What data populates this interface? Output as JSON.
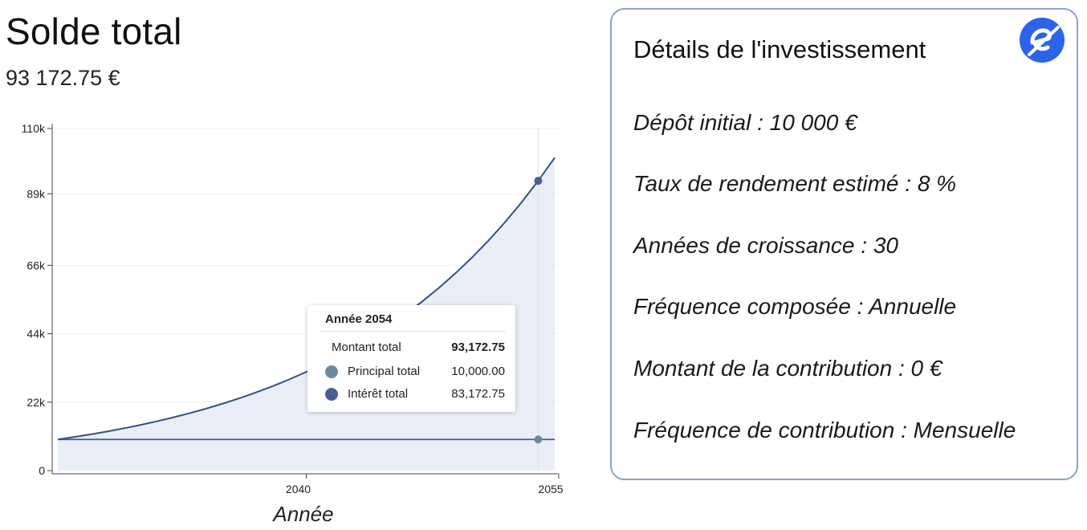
{
  "header": {
    "title": "Solde total",
    "total": "93 172.75 €"
  },
  "details": {
    "title": "Détails de l'investissement",
    "logo_icon": "circle-e-logo",
    "items": [
      "Dépôt initial : 10 000 €",
      "Taux de rendement estimé : 8 %",
      "Années de croissance : 30",
      "Fréquence composée : Annuelle",
      "Montant de la contribution : 0 €",
      "Fréquence de contribution : Mensuelle"
    ]
  },
  "tooltip": {
    "title": "Année 2054",
    "rows": [
      {
        "label": "Montant total",
        "value": "93,172.75"
      },
      {
        "label": "Principal total",
        "value": "10,000.00"
      },
      {
        "label": "Intérêt total",
        "value": "83,172.75"
      }
    ]
  },
  "colors": {
    "total_line": "#34517e",
    "principal_line": "#3d5f86",
    "area_fill": "#e9eef9",
    "principal_dot": "#6b8aa1",
    "interest_dot": "#4a5e96",
    "card_border": "#8e9fd6",
    "logo": "#2d63e8"
  },
  "chart_data": {
    "type": "area",
    "xlabel": "Année",
    "ylabel": "",
    "x_ticks": [
      {
        "value": 2040,
        "label": "2040"
      },
      {
        "value": 2055,
        "label": "2055"
      }
    ],
    "y_ticks": [
      {
        "value": 0,
        "label": "0"
      },
      {
        "value": 22000,
        "label": "22k"
      },
      {
        "value": 44000,
        "label": "44k"
      },
      {
        "value": 66000,
        "label": "66k"
      },
      {
        "value": 89000,
        "label": "89k"
      },
      {
        "value": 110000,
        "label": "110k"
      }
    ],
    "xlim": [
      2025,
      2055
    ],
    "ylim": [
      0,
      110000
    ],
    "grid": "horizontal",
    "highlight_x": 2054,
    "x": [
      2025,
      2026,
      2027,
      2028,
      2029,
      2030,
      2031,
      2032,
      2033,
      2034,
      2035,
      2036,
      2037,
      2038,
      2039,
      2040,
      2041,
      2042,
      2043,
      2044,
      2045,
      2046,
      2047,
      2048,
      2049,
      2050,
      2051,
      2052,
      2053,
      2054,
      2055
    ],
    "series": [
      {
        "name": "Montant total",
        "values": [
          10000,
          10800,
          11664,
          12597,
          13605,
          14693,
          15869,
          17138,
          18509,
          19990,
          21589,
          23316,
          25182,
          27196,
          29372,
          31722,
          34259,
          37000,
          39960,
          43157,
          46610,
          50338,
          54365,
          58715,
          63412,
          68485,
          73964,
          79881,
          86271,
          93173,
          100627
        ]
      },
      {
        "name": "Principal total",
        "values": [
          10000,
          10000,
          10000,
          10000,
          10000,
          10000,
          10000,
          10000,
          10000,
          10000,
          10000,
          10000,
          10000,
          10000,
          10000,
          10000,
          10000,
          10000,
          10000,
          10000,
          10000,
          10000,
          10000,
          10000,
          10000,
          10000,
          10000,
          10000,
          10000,
          10000,
          10000
        ]
      }
    ]
  }
}
